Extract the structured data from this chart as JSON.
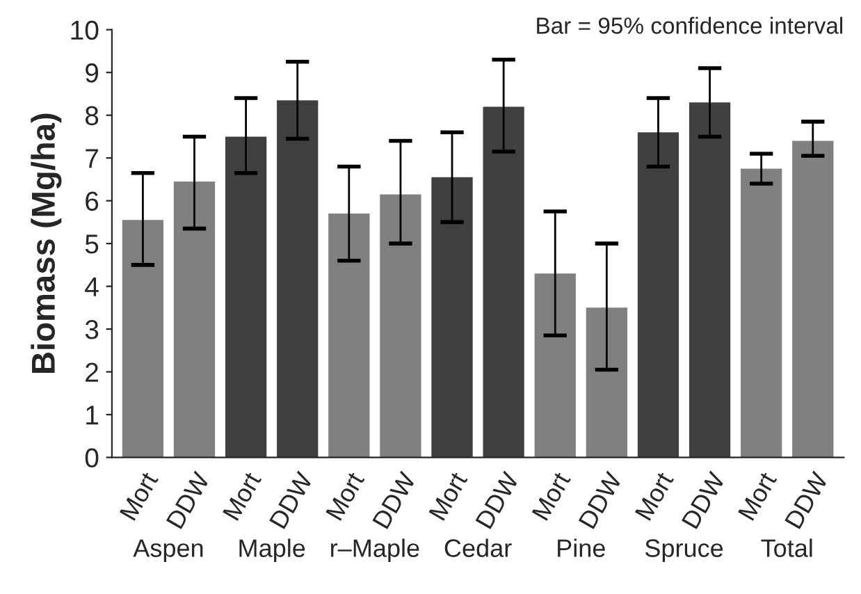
{
  "chart_data": {
    "type": "bar",
    "ylabel": "Biomass (Mg/ha)",
    "categories": [
      "Mort",
      "DDW",
      "Mort",
      "DDW",
      "Mort",
      "DDW",
      "Mort",
      "DDW",
      "Mort",
      "DDW",
      "Mort",
      "DDW",
      "Mort",
      "DDW"
    ],
    "values": [
      5.55,
      6.45,
      7.5,
      8.35,
      5.7,
      6.15,
      6.55,
      8.2,
      4.3,
      3.5,
      7.6,
      8.3,
      6.75,
      7.4
    ],
    "colors": [
      "#808080",
      "#808080",
      "#404040",
      "#404040",
      "#808080",
      "#808080",
      "#404040",
      "#404040",
      "#808080",
      "#808080",
      "#404040",
      "#404040",
      "#808080",
      "#808080"
    ],
    "errors": [
      [
        4.5,
        6.65
      ],
      [
        5.35,
        7.5
      ],
      [
        6.65,
        8.4
      ],
      [
        7.45,
        9.25
      ],
      [
        4.6,
        6.8
      ],
      [
        5.0,
        7.4
      ],
      [
        5.5,
        7.6
      ],
      [
        7.15,
        9.3
      ],
      [
        2.85,
        5.75
      ],
      [
        2.05,
        5.0
      ],
      [
        6.8,
        8.4
      ],
      [
        7.5,
        9.1
      ],
      [
        6.4,
        7.1
      ],
      [
        7.05,
        7.85
      ]
    ],
    "ylim": [
      0,
      10
    ],
    "yticks": [
      0,
      1,
      2,
      3,
      4,
      5,
      6,
      7,
      8,
      9,
      10
    ],
    "annotations": [
      "Aspen",
      "Maple",
      "r–Maple",
      "Cedar",
      "Pine",
      "Spruce",
      "Total",
      "Bar = 95% confidence interval"
    ]
  }
}
